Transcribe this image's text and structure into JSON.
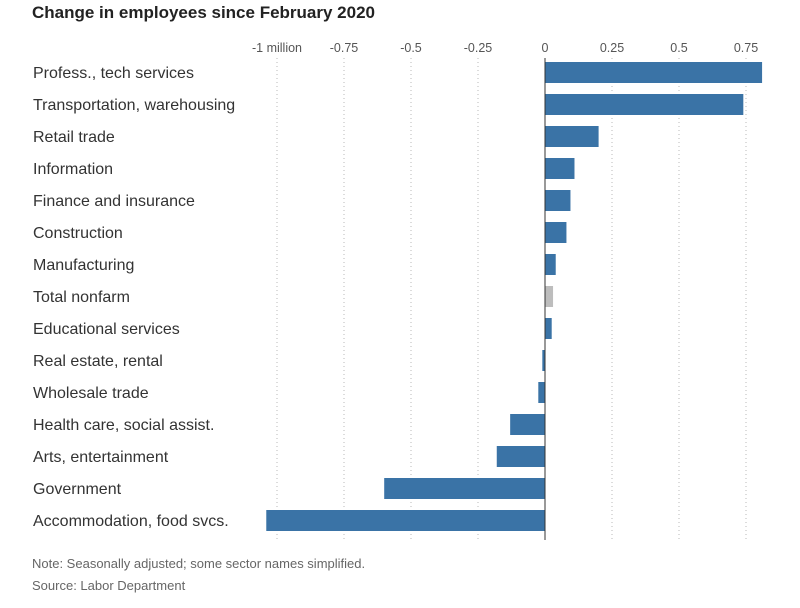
{
  "chart_data": {
    "type": "bar",
    "orientation": "horizontal",
    "title": "Change in employees since February 2020",
    "x_unit": "million",
    "xlim": [
      -1.04,
      0.82
    ],
    "xticks": [
      {
        "value": -1,
        "label": "-1 million"
      },
      {
        "value": -0.75,
        "label": "-0.75"
      },
      {
        "value": -0.5,
        "label": "-0.5"
      },
      {
        "value": -0.25,
        "label": "-0.25"
      },
      {
        "value": 0,
        "label": "0"
      },
      {
        "value": 0.25,
        "label": "0.25"
      },
      {
        "value": 0.5,
        "label": "0.5"
      },
      {
        "value": 0.75,
        "label": "0.75"
      }
    ],
    "grid": true,
    "categories": [
      "Profess., tech services",
      "Transportation, warehousing",
      "Retail trade",
      "Information",
      "Finance and insurance",
      "Construction",
      "Manufacturing",
      "Total nonfarm",
      "Educational services",
      "Real estate, rental",
      "Wholesale trade",
      "Health care, social assist.",
      "Arts, entertainment",
      "Government",
      "Accommodation, food svcs."
    ],
    "values": [
      0.81,
      0.74,
      0.2,
      0.11,
      0.095,
      0.08,
      0.04,
      0.03,
      0.025,
      -0.01,
      -0.025,
      -0.13,
      -0.18,
      -0.6,
      -1.04
    ],
    "colors": {
      "default": "#3a73a6",
      "highlight": "#bdbdbd",
      "highlight_category": "Total nonfarm"
    },
    "note": "Note: Seasonally adjusted; some sector names simplified.",
    "source": "Source: Labor Department"
  }
}
